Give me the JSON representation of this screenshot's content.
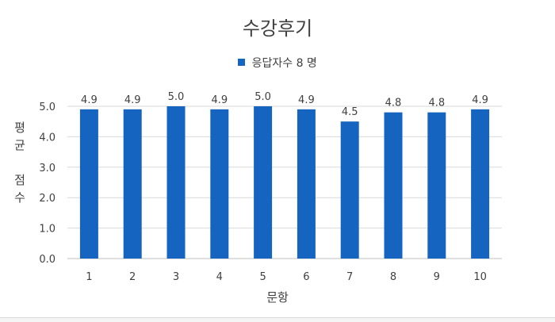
{
  "chart_data": {
    "type": "bar",
    "title": "수강후기",
    "xlabel": "문항",
    "ylabel": "평균 점수",
    "categories": [
      "1",
      "2",
      "3",
      "4",
      "5",
      "6",
      "7",
      "8",
      "9",
      "10"
    ],
    "series": [
      {
        "name": "응답자수 8 명",
        "values": [
          4.9,
          4.9,
          5.0,
          4.9,
          5.0,
          4.9,
          4.5,
          4.8,
          4.8,
          4.9
        ],
        "color": "#1565C0"
      }
    ],
    "data_labels": [
      "4.9",
      "4.9",
      "5.0",
      "4.9",
      "5.0",
      "4.9",
      "4.5",
      "4.8",
      "4.8",
      "4.9"
    ],
    "ylim": [
      0,
      5
    ],
    "yticks": [
      "0.0",
      "1.0",
      "2.0",
      "3.0",
      "4.0",
      "5.0"
    ],
    "grid": true,
    "legend_position": "top-center"
  }
}
